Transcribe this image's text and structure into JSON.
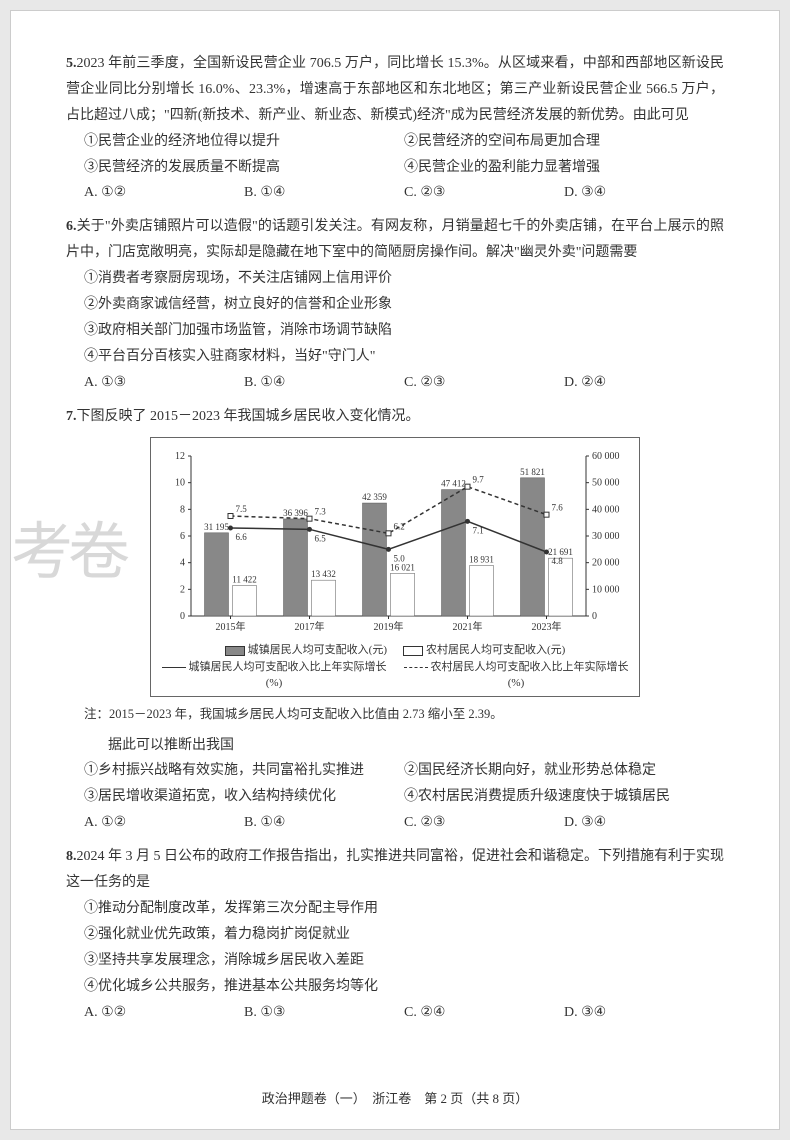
{
  "watermark": "考卷",
  "q5": {
    "num": "5.",
    "text": "2023 年前三季度，全国新设民营企业 706.5 万户，同比增长 15.3%。从区域来看，中部和西部地区新设民营企业同比分别增长 16.0%、23.3%，增速高于东部地区和东北地区；第三产业新设民营企业 566.5 万户，占比超过八成；\"四新(新技术、新产业、新业态、新模式)经济\"成为民营经济发展的新优势。由此可见",
    "s1": "①民营企业的经济地位得以提升",
    "s2": "②民营经济的空间布局更加合理",
    "s3": "③民营经济的发展质量不断提高",
    "s4": "④民营企业的盈利能力显著增强",
    "a": "A. ①②",
    "b": "B. ①④",
    "c": "C. ②③",
    "d": "D. ③④"
  },
  "q6": {
    "num": "6.",
    "text": "关于\"外卖店铺照片可以造假\"的话题引发关注。有网友称，月销量超七千的外卖店铺，在平台上展示的照片中，门店宽敞明亮，实际却是隐藏在地下室中的简陋厨房操作间。解决\"幽灵外卖\"问题需要",
    "s1": "①消费者考察厨房现场，不关注店铺网上信用评价",
    "s2": "②外卖商家诚信经营，树立良好的信誉和企业形象",
    "s3": "③政府相关部门加强市场监管，消除市场调节缺陷",
    "s4": "④平台百分百核实入驻商家材料，当好\"守门人\"",
    "a": "A. ①③",
    "b": "B. ①④",
    "c": "C. ②③",
    "d": "D. ②④"
  },
  "q7": {
    "num": "7.",
    "text": "下图反映了 2015－2023 年我国城乡居民收入变化情况。",
    "note": "注：2015－2023 年，我国城乡居民人均可支配收入比值由 2.73 缩小至 2.39。",
    "lead": "据此可以推断出我国",
    "s1": "①乡村振兴战略有效实施，共同富裕扎实推进",
    "s2": "②国民经济长期向好，就业形势总体稳定",
    "s3": "③居民增收渠道拓宽，收入结构持续优化",
    "s4": "④农村居民消费提质升级速度快于城镇居民",
    "a": "A. ①②",
    "b": "B. ①④",
    "c": "C. ②③",
    "d": "D. ③④"
  },
  "q8": {
    "num": "8.",
    "text": "2024 年 3 月 5 日公布的政府工作报告指出，扎实推进共同富裕，促进社会和谐稳定。下列措施有利于实现这一任务的是",
    "s1": "①推动分配制度改革，发挥第三次分配主导作用",
    "s2": "②强化就业优先政策，着力稳岗扩岗促就业",
    "s3": "③坚持共享发展理念，消除城乡居民收入差距",
    "s4": "④优化城乡公共服务，推进基本公共服务均等化",
    "a": "A. ①②",
    "b": "B. ①③",
    "c": "C. ②④",
    "d": "D. ③④"
  },
  "chart": {
    "categories": [
      "2015年",
      "2017年",
      "2019年",
      "2021年",
      "2023年"
    ],
    "urban_bars": [
      31195,
      36396,
      42359,
      47412,
      51821
    ],
    "rural_bars": [
      11422,
      13432,
      16021,
      18931,
      21691
    ],
    "urban_line": [
      6.6,
      6.5,
      5.0,
      7.1,
      4.8
    ],
    "rural_line": [
      7.5,
      7.3,
      6.2,
      9.7,
      7.6
    ],
    "left_ticks": [
      0,
      2,
      4,
      6,
      8,
      10,
      12
    ],
    "right_ticks": [
      0,
      10000,
      20000,
      30000,
      40000,
      50000,
      60000
    ],
    "legend1": "城镇居民人均可支配收入(元)",
    "legend2": "农村居民人均可支配收入(元)",
    "legend3": "城镇居民人均可支配收入比上年实际增长(%)",
    "legend4": "农村居民人均可支配收入比上年实际增长(%)"
  },
  "footer": "政治押题卷（一）　浙江卷　第 2 页（共 8 页）"
}
